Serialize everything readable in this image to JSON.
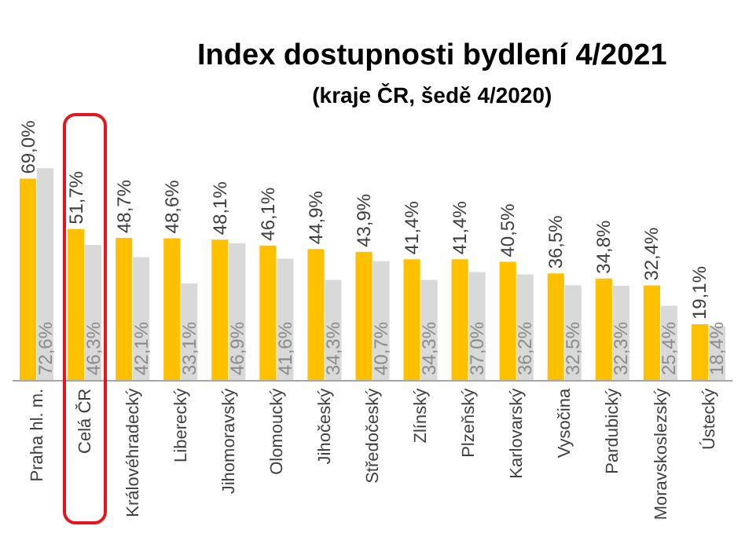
{
  "chart_data": {
    "type": "bar",
    "title": "Index dostupnosti bydlení 4/2021",
    "subtitle": "(kraje ČR, šedě 4/2020)",
    "categories": [
      "Praha hl. m.",
      "Celá ČR",
      "Královéhradecký",
      "Liberecký",
      "Jihomoravský",
      "Olomoucký",
      "Jihočeský",
      "Středočeský",
      "Zlínský",
      "Plzeňský",
      "Karlovarský",
      "Vysočina",
      "Pardubický",
      "Moravskoslezský",
      "Ústecký"
    ],
    "series": [
      {
        "color": "#ffc000",
        "values": [
          69.0,
          51.7,
          48.7,
          48.6,
          48.1,
          46.1,
          44.9,
          43.9,
          41.4,
          41.4,
          40.5,
          36.5,
          34.8,
          32.4,
          19.1
        ],
        "value_labels": [
          "69,0%",
          "51,7%",
          "48,7%",
          "48,6%",
          "48,1%",
          "46,1%",
          "44,9%",
          "43,9%",
          "41,4%",
          "41,4%",
          "40,5%",
          "36,5%",
          "34,8%",
          "32,4%",
          "19,1%"
        ]
      },
      {
        "color": "#d9d9d9",
        "values": [
          72.6,
          46.3,
          42.1,
          33.1,
          46.9,
          41.6,
          34.3,
          40.7,
          34.3,
          37.0,
          36.2,
          32.5,
          32.3,
          25.4,
          18.4
        ],
        "value_labels": [
          "72,6%",
          "46,3%",
          "42,1%",
          "33,1%",
          "46,9%",
          "41,6%",
          "34,3%",
          "40,7%",
          "34,3%",
          "37,0%",
          "36,2%",
          "32,5%",
          "32,3%",
          "25,4%",
          "18,4%"
        ]
      }
    ],
    "grid": false
  }
}
